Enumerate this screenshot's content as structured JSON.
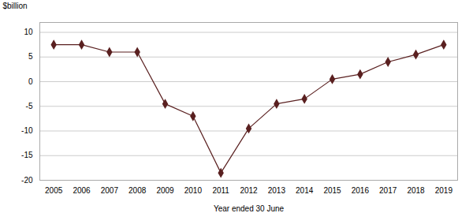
{
  "chart_data": {
    "type": "line",
    "x": [
      2005,
      2006,
      2007,
      2008,
      2009,
      2010,
      2011,
      2012,
      2013,
      2014,
      2015,
      2016,
      2017,
      2018,
      2019
    ],
    "values": [
      7.5,
      7.5,
      6.0,
      6.0,
      -4.5,
      -7.0,
      -18.5,
      -9.5,
      -4.5,
      -3.5,
      0.5,
      1.5,
      4.0,
      5.5,
      7.5
    ],
    "color": "#5a2020",
    "marker": "diamond",
    "xlabel": "Year ended 30 June",
    "ylabel": "$billion",
    "xlim": [
      2004.5,
      2019.5
    ],
    "xticks": [
      2005,
      2006,
      2007,
      2008,
      2009,
      2010,
      2011,
      2012,
      2013,
      2014,
      2015,
      2016,
      2017,
      2018,
      2019
    ],
    "ylim": [
      -20,
      12
    ],
    "yticks": [
      -20,
      -15,
      -10,
      -5,
      0,
      5,
      10
    ],
    "grid": true
  }
}
